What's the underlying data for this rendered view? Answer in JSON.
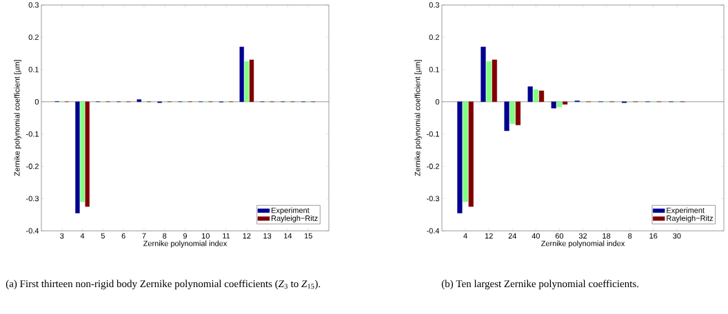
{
  "chart_data": [
    {
      "type": "bar",
      "xlabel": "Zernike polynomial index",
      "ylabel": "Zernike polynomial coefficient [µm]",
      "categories": [
        "3",
        "4",
        "5",
        "6",
        "7",
        "8",
        "9",
        "10",
        "11",
        "12",
        "13",
        "14",
        "15"
      ],
      "series": [
        {
          "name": "Experiment",
          "color": "#00008f",
          "values": [
            0.001,
            -0.345,
            0,
            0,
            0.007,
            -0.003,
            0,
            0,
            -0.001,
            0.17,
            0,
            0,
            0
          ]
        },
        {
          "color": "#80ff80",
          "values": [
            0,
            -0.31,
            0,
            0,
            0,
            0,
            0,
            0,
            0,
            0.125,
            0,
            0,
            0
          ]
        },
        {
          "name": "Rayleigh−Ritz",
          "color": "#800000",
          "values": [
            0,
            -0.325,
            0,
            0,
            0,
            0,
            0,
            0,
            0,
            0.13,
            0,
            0,
            0
          ]
        }
      ],
      "ylim": [
        -0.4,
        0.3
      ],
      "yticks": [
        -0.4,
        -0.3,
        -0.2,
        -0.1,
        0,
        0.1,
        0.2,
        0.3
      ],
      "legend": "bottom right",
      "grid": false,
      "ref_lines": [
        {
          "axis": "y",
          "value": 0,
          "color": "#808080"
        }
      ],
      "annotations": [
        "(a) First thirteen non-rigid body Zernike polynomial coefficients (*Z*$_{3}$ to *Z*$_{15}$)."
      ]
    },
    {
      "type": "bar",
      "xlabel": "Zernike polynomial index",
      "ylabel": "Zernike polynomial coefficient [µm]",
      "categories": [
        "4",
        "12",
        "24",
        "40",
        "60",
        "32",
        "18",
        "8",
        "16",
        "30"
      ],
      "series": [
        {
          "name": "Experiment",
          "color": "#00008f",
          "values": [
            -0.345,
            0.17,
            -0.09,
            0.047,
            -0.02,
            0.003,
            0,
            -0.003,
            0,
            0
          ]
        },
        {
          "color": "#80ff80",
          "values": [
            -0.31,
            0.125,
            -0.068,
            0.038,
            -0.016,
            0,
            0,
            0,
            0,
            0
          ]
        },
        {
          "name": "Rayleigh−Ritz",
          "color": "#800000",
          "values": [
            -0.325,
            0.13,
            -0.072,
            0.034,
            -0.008,
            0,
            0,
            0,
            0,
            0
          ]
        }
      ],
      "ylim": [
        -0.4,
        0.3
      ],
      "yticks": [
        -0.4,
        -0.3,
        -0.2,
        -0.1,
        0,
        0.1,
        0.2,
        0.3
      ],
      "legend": "bottom right",
      "grid": false,
      "ref_lines": [
        {
          "axis": "y",
          "value": 0,
          "color": "#808080"
        }
      ],
      "annotations": [
        "(b) Ten largest Zernike polynomial coefficients."
      ]
    }
  ]
}
